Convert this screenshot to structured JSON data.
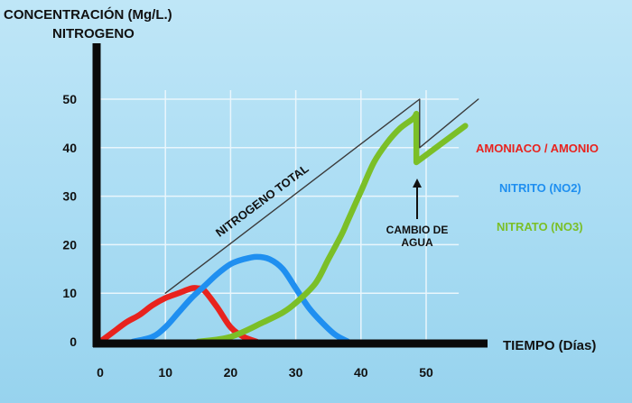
{
  "chart_data": {
    "type": "line",
    "ylabel_line1": "CONCENTRACIÓN (Mg/L.)",
    "ylabel_line2": "NITROGENO",
    "xlabel": "TIEMPO (Días)",
    "xlim": [
      0,
      55
    ],
    "ylim": [
      0,
      50
    ],
    "xticks": [
      0,
      10,
      20,
      30,
      40,
      50
    ],
    "yticks": [
      0,
      10,
      20,
      30,
      40,
      50
    ],
    "grid": true,
    "series": [
      {
        "name": "AMONIACO / AMONIO",
        "color": "#e8231e",
        "x": [
          0,
          2,
          4,
          6,
          8,
          10,
          12,
          14,
          15,
          16,
          18,
          20,
          22,
          24
        ],
        "y": [
          0,
          2,
          4,
          5.5,
          7.5,
          9,
          10,
          11,
          11,
          10.5,
          7,
          3,
          1,
          0
        ]
      },
      {
        "name": "NITRITO (NO2)",
        "color": "#1f8ff0",
        "x": [
          5,
          8,
          10,
          12,
          14,
          16,
          18,
          20,
          22,
          24,
          26,
          28,
          30,
          32,
          34,
          36,
          38
        ],
        "y": [
          0,
          1,
          3,
          6,
          9,
          11.5,
          14,
          16,
          17,
          17.5,
          17,
          15,
          11,
          7,
          4,
          1.5,
          0
        ]
      },
      {
        "name": "NITRATO (NO3)",
        "color": "#7bbf27",
        "x": [
          15,
          20,
          25,
          28,
          30,
          33,
          35,
          37,
          38,
          40,
          42,
          44,
          46,
          48,
          48.5,
          48.5,
          50,
          53,
          56
        ],
        "y": [
          0,
          1,
          4,
          6,
          8,
          12,
          17,
          22,
          25,
          31,
          37,
          41,
          44,
          46,
          47,
          37,
          38.5,
          41.5,
          44.5
        ]
      },
      {
        "name": "NITROGENO TOTAL",
        "color": "#3b3b3b",
        "x": [
          10,
          49,
          49,
          58
        ],
        "y": [
          10,
          50,
          40,
          50
        ]
      }
    ],
    "annotations": [
      {
        "text": "NITROGENO TOTAL",
        "x": 30,
        "y": 32
      },
      {
        "text_line1": "CAMBIO DE",
        "text_line2": "AGUA",
        "x": 48.5,
        "y": 22
      }
    ],
    "legend_placement": "right",
    "legend": [
      {
        "label": "AMONIACO / AMONIO",
        "color": "#e8231e"
      },
      {
        "label": "NITRITO (NO2)",
        "color": "#1f8ff0"
      },
      {
        "label": "NITRATO (NO3)",
        "color": "#7bbf27"
      }
    ]
  }
}
